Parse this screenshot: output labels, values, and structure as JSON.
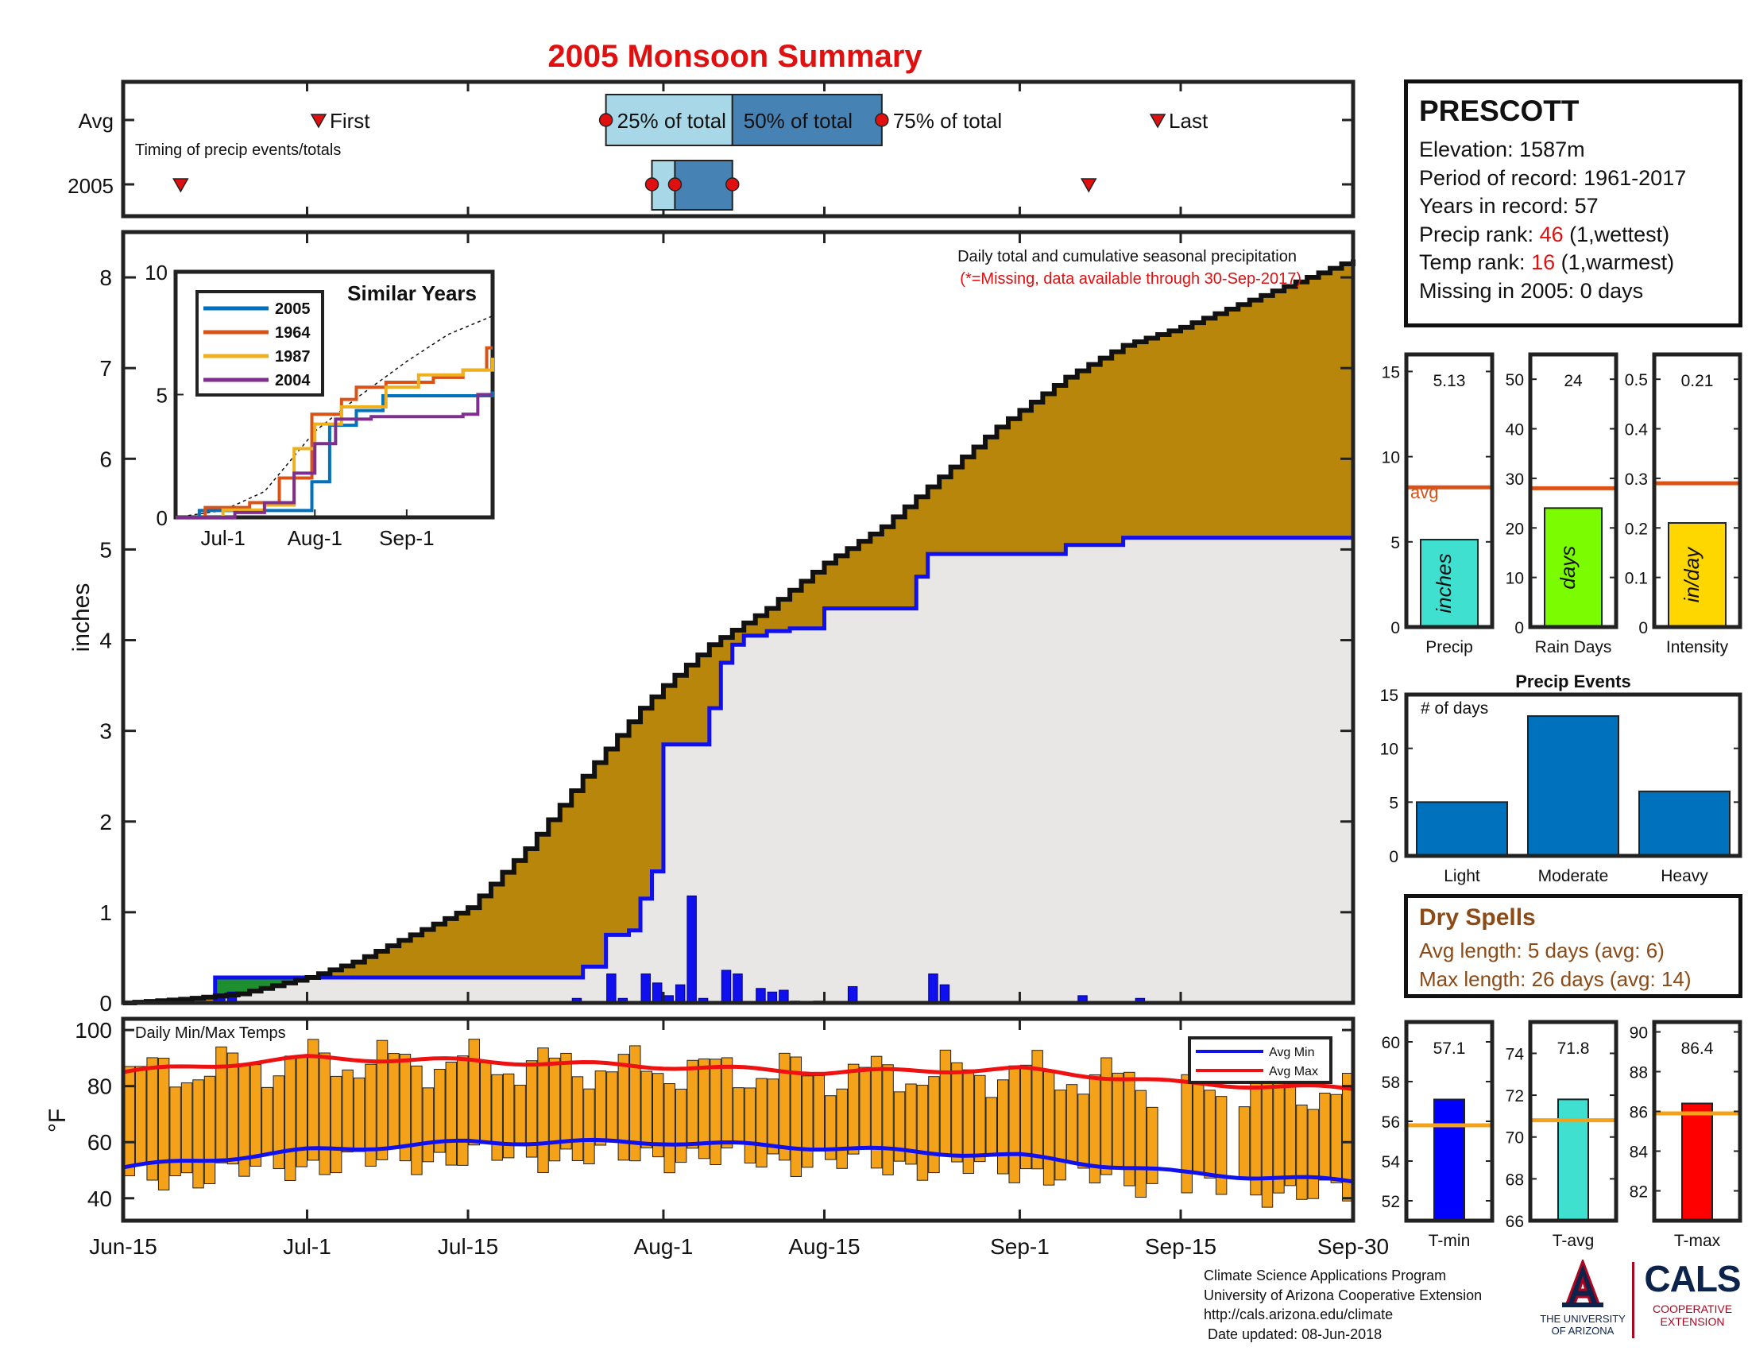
{
  "page_title": "2005 Monsoon Summary",
  "station": {
    "name": "PRESCOTT",
    "elevation_label": "Elevation: 1587m",
    "period_label": "Period of record: 1961-2017",
    "years_label": "Years in record: 57",
    "precip_rank_prefix": "Precip rank: ",
    "precip_rank_value": "46",
    "precip_rank_suffix": " (1,wettest)",
    "temp_rank_prefix": "Temp rank: ",
    "temp_rank_value": "16",
    "temp_rank_suffix": " (1,warmest)",
    "missing_label": "Missing in 2005: 0 days"
  },
  "dry_spells": {
    "title": "Dry Spells",
    "avg_length": "Avg length: 5 days (avg: 6)",
    "max_length": "Max length: 26 days (avg: 14)"
  },
  "credits": {
    "line1": "Climate Science Applications Program",
    "line2": "University of Arizona Cooperative Extension",
    "line3": "http://cals.arizona.edu/climate",
    "line4": " Date updated: 08-Jun-2018"
  },
  "logos": {
    "ua_line1": "THE UNIVERSITY",
    "ua_line2": "OF ARIZONA",
    "cals_name": "CALS",
    "cals_line1": "COOPERATIVE",
    "cals_line2": "EXTENSION",
    "ua_navy": "#0c234b",
    "ua_red": "#ab0520"
  },
  "colors": {
    "title_red": "#e01010",
    "avg_line": "#d95319",
    "brown_fill": "#b8860b",
    "gray_fill": "#e8e7e6",
    "blue_line": "#1010ee",
    "orange_bar": "#f5a21b",
    "avg_temp_line": "#f5a21b",
    "bar_blue": "#0072bd"
  },
  "chart_data": [
    {
      "id": "timing",
      "type": "scatter",
      "title": "Timing of precip events/totals",
      "rows": [
        "Avg",
        "2005"
      ],
      "avg": {
        "first": "Jul-2",
        "q25": "Jul-27",
        "q50": "Aug-7",
        "q75": "Aug-20",
        "last": "Sep-13",
        "labels": [
          "First",
          "25% of total",
          "50% of total",
          "75% of total",
          "Last"
        ]
      },
      "year": {
        "first": "Jun-20",
        "q25": "Jul-31",
        "q50": "Aug-2",
        "q75": "Aug-7",
        "last": "Sep-7"
      }
    },
    {
      "id": "main",
      "type": "area",
      "annotation1": "Daily total and cumulative seasonal precipitation",
      "annotation2": "(*=Missing, data available through 30-Sep-2017)",
      "ylabel": "inches",
      "ylim": [
        0,
        8.5
      ],
      "yticks": [
        0,
        1,
        2,
        3,
        4,
        5,
        6,
        7,
        8
      ],
      "xticks": [
        "Jun-15",
        "Jul-1",
        "Jul-15",
        "Aug-1",
        "Aug-15",
        "Sep-1",
        "Sep-15",
        "Sep-30"
      ],
      "avg_cumulative": {
        "x": [
          "Jun-15",
          "Jun-20",
          "Jun-25",
          "Jul-1",
          "Jul-5",
          "Jul-10",
          "Jul-15",
          "Jul-20",
          "Jul-25",
          "Jul-30",
          "Aug-1",
          "Aug-5",
          "Aug-10",
          "Aug-15",
          "Aug-20",
          "Aug-25",
          "Aug-30",
          "Sep-5",
          "Sep-10",
          "Sep-15",
          "Sep-20",
          "Sep-25",
          "Sep-30"
        ],
        "y": [
          0.0,
          0.04,
          0.1,
          0.28,
          0.45,
          0.75,
          1.05,
          1.7,
          2.5,
          3.25,
          3.5,
          3.95,
          4.35,
          4.85,
          5.25,
          5.8,
          6.35,
          6.9,
          7.25,
          7.45,
          7.7,
          7.95,
          8.2
        ]
      },
      "year_cumulative": {
        "x": [
          "Jun-15",
          "Jun-23",
          "Jun-24",
          "Jul-7",
          "Jul-24",
          "Jul-25",
          "Jul-27",
          "Jul-29",
          "Jul-30",
          "Jul-31",
          "Aug-1",
          "Aug-4",
          "Aug-5",
          "Aug-6",
          "Aug-7",
          "Aug-8",
          "Aug-10",
          "Aug-12",
          "Aug-15",
          "Aug-22",
          "Aug-23",
          "Aug-24",
          "Sep-5",
          "Sep-10",
          "Sep-30"
        ],
        "y": [
          0.0,
          0.28,
          0.28,
          0.28,
          0.28,
          0.4,
          0.75,
          0.8,
          1.15,
          1.45,
          2.85,
          2.85,
          3.25,
          3.75,
          3.95,
          4.05,
          4.1,
          4.13,
          4.35,
          4.35,
          4.7,
          4.95,
          5.05,
          5.13,
          5.13
        ]
      },
      "daily": {
        "x": [
          "Jun-23",
          "Jun-24",
          "Jul-24",
          "Jul-27",
          "Jul-28",
          "Jul-30",
          "Jul-31",
          "Aug-1",
          "Aug-2",
          "Aug-3",
          "Aug-4",
          "Aug-6",
          "Aug-7",
          "Aug-9",
          "Aug-10",
          "Aug-11",
          "Aug-12",
          "Aug-14",
          "Aug-17",
          "Aug-24",
          "Aug-25",
          "Sep-6",
          "Sep-11"
        ],
        "y": [
          0.1,
          0.12,
          0.05,
          0.32,
          0.05,
          0.32,
          0.22,
          0.08,
          0.2,
          1.18,
          0.05,
          0.36,
          0.32,
          0.16,
          0.12,
          0.14,
          0.02,
          0.02,
          0.18,
          0.32,
          0.2,
          0.08,
          0.05
        ]
      },
      "green_fill": {
        "x_start": "Jun-23",
        "x_end": "Jun-30"
      }
    },
    {
      "id": "similar_years",
      "type": "line",
      "title": "Similar Years",
      "ylim": [
        0,
        10
      ],
      "yticks": [
        0,
        5,
        10
      ],
      "xticks": [
        "Jul-1",
        "Aug-1",
        "Sep-1"
      ],
      "series": [
        {
          "name": "2005",
          "color": "#0072bd",
          "x": [
            "Jun-15",
            "Jun-23",
            "Jul-7",
            "Jul-24",
            "Jul-31",
            "Aug-6",
            "Aug-15",
            "Aug-24",
            "Sep-30"
          ],
          "y": [
            0.0,
            0.28,
            0.28,
            0.28,
            1.45,
            3.75,
            4.35,
            4.95,
            5.13
          ]
        },
        {
          "name": "1964",
          "color": "#d95319",
          "x": [
            "Jun-15",
            "Jun-25",
            "Jul-10",
            "Jul-20",
            "Jul-31",
            "Aug-10",
            "Aug-15",
            "Aug-25",
            "Sep-10",
            "Sep-20",
            "Sep-28",
            "Sep-30"
          ],
          "y": [
            0.0,
            0.4,
            0.6,
            1.6,
            4.2,
            4.8,
            5.3,
            5.5,
            5.7,
            6.0,
            6.9,
            6.9
          ]
        },
        {
          "name": "1987",
          "color": "#edb120",
          "x": [
            "Jun-15",
            "Jul-1",
            "Jul-15",
            "Jul-25",
            "Aug-1",
            "Aug-10",
            "Aug-25",
            "Sep-5",
            "Sep-20",
            "Sep-30"
          ],
          "y": [
            0.0,
            0.3,
            0.5,
            2.8,
            3.8,
            4.5,
            5.3,
            5.8,
            6.0,
            6.5
          ]
        },
        {
          "name": "2004",
          "color": "#7e2f8e",
          "x": [
            "Jun-15",
            "Jul-5",
            "Jul-15",
            "Jul-25",
            "Aug-1",
            "Aug-8",
            "Aug-20",
            "Sep-20",
            "Sep-25",
            "Sep-30"
          ],
          "y": [
            0.0,
            0.2,
            0.6,
            1.8,
            3.0,
            4.0,
            4.1,
            4.2,
            5.0,
            5.0
          ]
        }
      ],
      "avg_dotted": {
        "x": [
          "Jun-15",
          "Jul-1",
          "Jul-15",
          "Aug-1",
          "Aug-15",
          "Sep-1",
          "Sep-15",
          "Sep-30"
        ],
        "y": [
          0.0,
          0.28,
          1.05,
          3.5,
          4.85,
          6.35,
          7.45,
          8.2
        ]
      }
    },
    {
      "id": "precip_total",
      "type": "bar",
      "categories": [
        "Precip"
      ],
      "values": [
        5.13
      ],
      "value_label": "5.13",
      "bar_label": "inches",
      "avg": 8.2,
      "avg_label": "avg",
      "ylim": [
        0,
        16
      ],
      "yticks": [
        0,
        5,
        10,
        15
      ],
      "color": "#40e0d0"
    },
    {
      "id": "rain_days",
      "type": "bar",
      "categories": [
        "Rain Days"
      ],
      "values": [
        24
      ],
      "value_label": "24",
      "bar_label": "days",
      "avg": 28,
      "ylim": [
        0,
        55
      ],
      "yticks": [
        0,
        10,
        20,
        30,
        40,
        50
      ],
      "color": "#7cfc00"
    },
    {
      "id": "intensity",
      "type": "bar",
      "categories": [
        "Intensity"
      ],
      "values": [
        0.21
      ],
      "value_label": "0.21",
      "bar_label": "in/day",
      "avg": 0.29,
      "ylim": [
        0,
        0.55
      ],
      "yticks": [
        0,
        0.1,
        0.2,
        0.3,
        0.4,
        0.5
      ],
      "color": "#ffd700"
    },
    {
      "id": "precip_events",
      "type": "bar",
      "title": "Precip Events",
      "ylabel": "# of days",
      "categories": [
        "Light",
        "Moderate",
        "Heavy"
      ],
      "values": [
        5,
        13,
        6
      ],
      "ylim": [
        0,
        15
      ],
      "yticks": [
        0,
        5,
        10,
        15
      ]
    },
    {
      "id": "temps",
      "type": "bar",
      "title": "Daily Min/Max Temps",
      "ylabel": "°F",
      "ylim": [
        32,
        104
      ],
      "yticks": [
        40,
        60,
        80,
        100
      ],
      "legend": [
        "Avg Min",
        "Avg Max"
      ],
      "legend_position": "top-right",
      "avg_min": {
        "x": [
          "Jun-15",
          "Jul-1",
          "Jul-15",
          "Aug-1",
          "Aug-15",
          "Sep-1",
          "Sep-15",
          "Sep-30"
        ],
        "y": [
          51,
          57,
          60,
          60,
          58,
          55,
          49,
          46
        ]
      },
      "avg_max": {
        "x": [
          "Jun-15",
          "Jul-1",
          "Jul-15",
          "Aug-1",
          "Aug-15",
          "Sep-1",
          "Sep-15",
          "Sep-30"
        ],
        "y": [
          85,
          90,
          89,
          87,
          85,
          86,
          81,
          79
        ]
      }
    },
    {
      "id": "tmin",
      "type": "bar",
      "categories": [
        "T-min"
      ],
      "values": [
        57.1
      ],
      "value_label": "57.1",
      "avg": 55.8,
      "ylim": [
        51,
        61
      ],
      "yticks": [
        52,
        54,
        56,
        58,
        60
      ],
      "color": "#0000ff"
    },
    {
      "id": "tavg",
      "type": "bar",
      "categories": [
        "T-avg"
      ],
      "values": [
        71.8
      ],
      "value_label": "71.8",
      "avg": 70.8,
      "ylim": [
        66,
        75.5
      ],
      "yticks": [
        66,
        68,
        70,
        72,
        74
      ],
      "color": "#40e0d0"
    },
    {
      "id": "tmax",
      "type": "bar",
      "categories": [
        "T-max"
      ],
      "values": [
        86.4
      ],
      "value_label": "86.4",
      "avg": 85.9,
      "ylim": [
        80.5,
        90.5
      ],
      "yticks": [
        82,
        84,
        86,
        88,
        90
      ],
      "color": "#ff0000"
    }
  ]
}
